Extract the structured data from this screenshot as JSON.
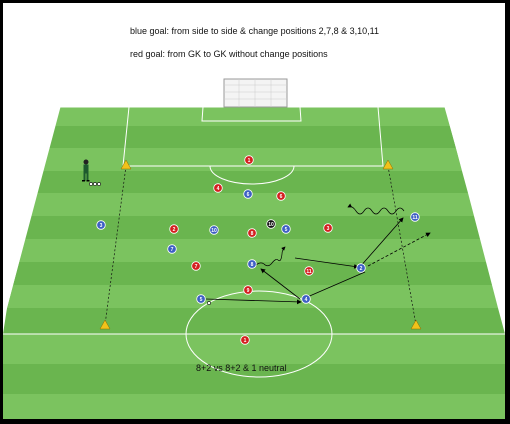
{
  "notes": {
    "blue_goal": "blue goal: from side to side & change positions 2,7,8 & 3,10,11",
    "red_goal": "red goal: from GK to GK without change positions"
  },
  "caption": "8+2 vs 8+2 & 1 neutral",
  "colors": {
    "grass_light": "#7bc35f",
    "grass_dark": "#6ab54f",
    "red_player": "#d41f1f",
    "blue_player": "#3d5fc4",
    "neutral_player": "#111111",
    "cone": "#f0c21a"
  },
  "red_players": [
    {
      "label": "1"
    },
    {
      "label": "4"
    },
    {
      "label": "6"
    },
    {
      "label": "2"
    },
    {
      "label": "8"
    },
    {
      "label": "3"
    },
    {
      "label": "7"
    },
    {
      "label": "11"
    },
    {
      "label": "9"
    },
    {
      "label": "1"
    }
  ],
  "blue_players": [
    {
      "label": "6"
    },
    {
      "label": "3"
    },
    {
      "label": "10"
    },
    {
      "label": "5"
    },
    {
      "label": "7"
    },
    {
      "label": "11"
    },
    {
      "label": "8"
    },
    {
      "label": "2"
    },
    {
      "label": "5"
    },
    {
      "label": "4"
    }
  ],
  "neutral_players": [
    {
      "label": "10"
    }
  ],
  "icons": [
    "goal-icon",
    "coach-icon",
    "cone-icon",
    "ball-icon"
  ]
}
